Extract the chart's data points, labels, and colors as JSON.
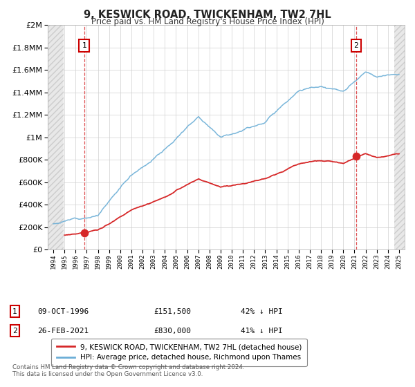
{
  "title": "9, KESWICK ROAD, TWICKENHAM, TW2 7HL",
  "subtitle": "Price paid vs. HM Land Registry's House Price Index (HPI)",
  "hpi_color": "#6baed6",
  "price_color": "#d62728",
  "marker1_year": 1996.77,
  "marker1_price": 151500,
  "marker1_date": "09-OCT-1996",
  "marker1_pct": "42%",
  "marker2_year": 2021.15,
  "marker2_price": 830000,
  "marker2_date": "26-FEB-2021",
  "marker2_pct": "41%",
  "legend_line1": "9, KESWICK ROAD, TWICKENHAM, TW2 7HL (detached house)",
  "legend_line2": "HPI: Average price, detached house, Richmond upon Thames",
  "footer": "Contains HM Land Registry data © Crown copyright and database right 2024.\nThis data is licensed under the Open Government Licence v3.0.",
  "ylim": [
    0,
    2000000
  ],
  "xlim_min": 1993.5,
  "xlim_max": 2025.5,
  "background_color": "#ffffff"
}
